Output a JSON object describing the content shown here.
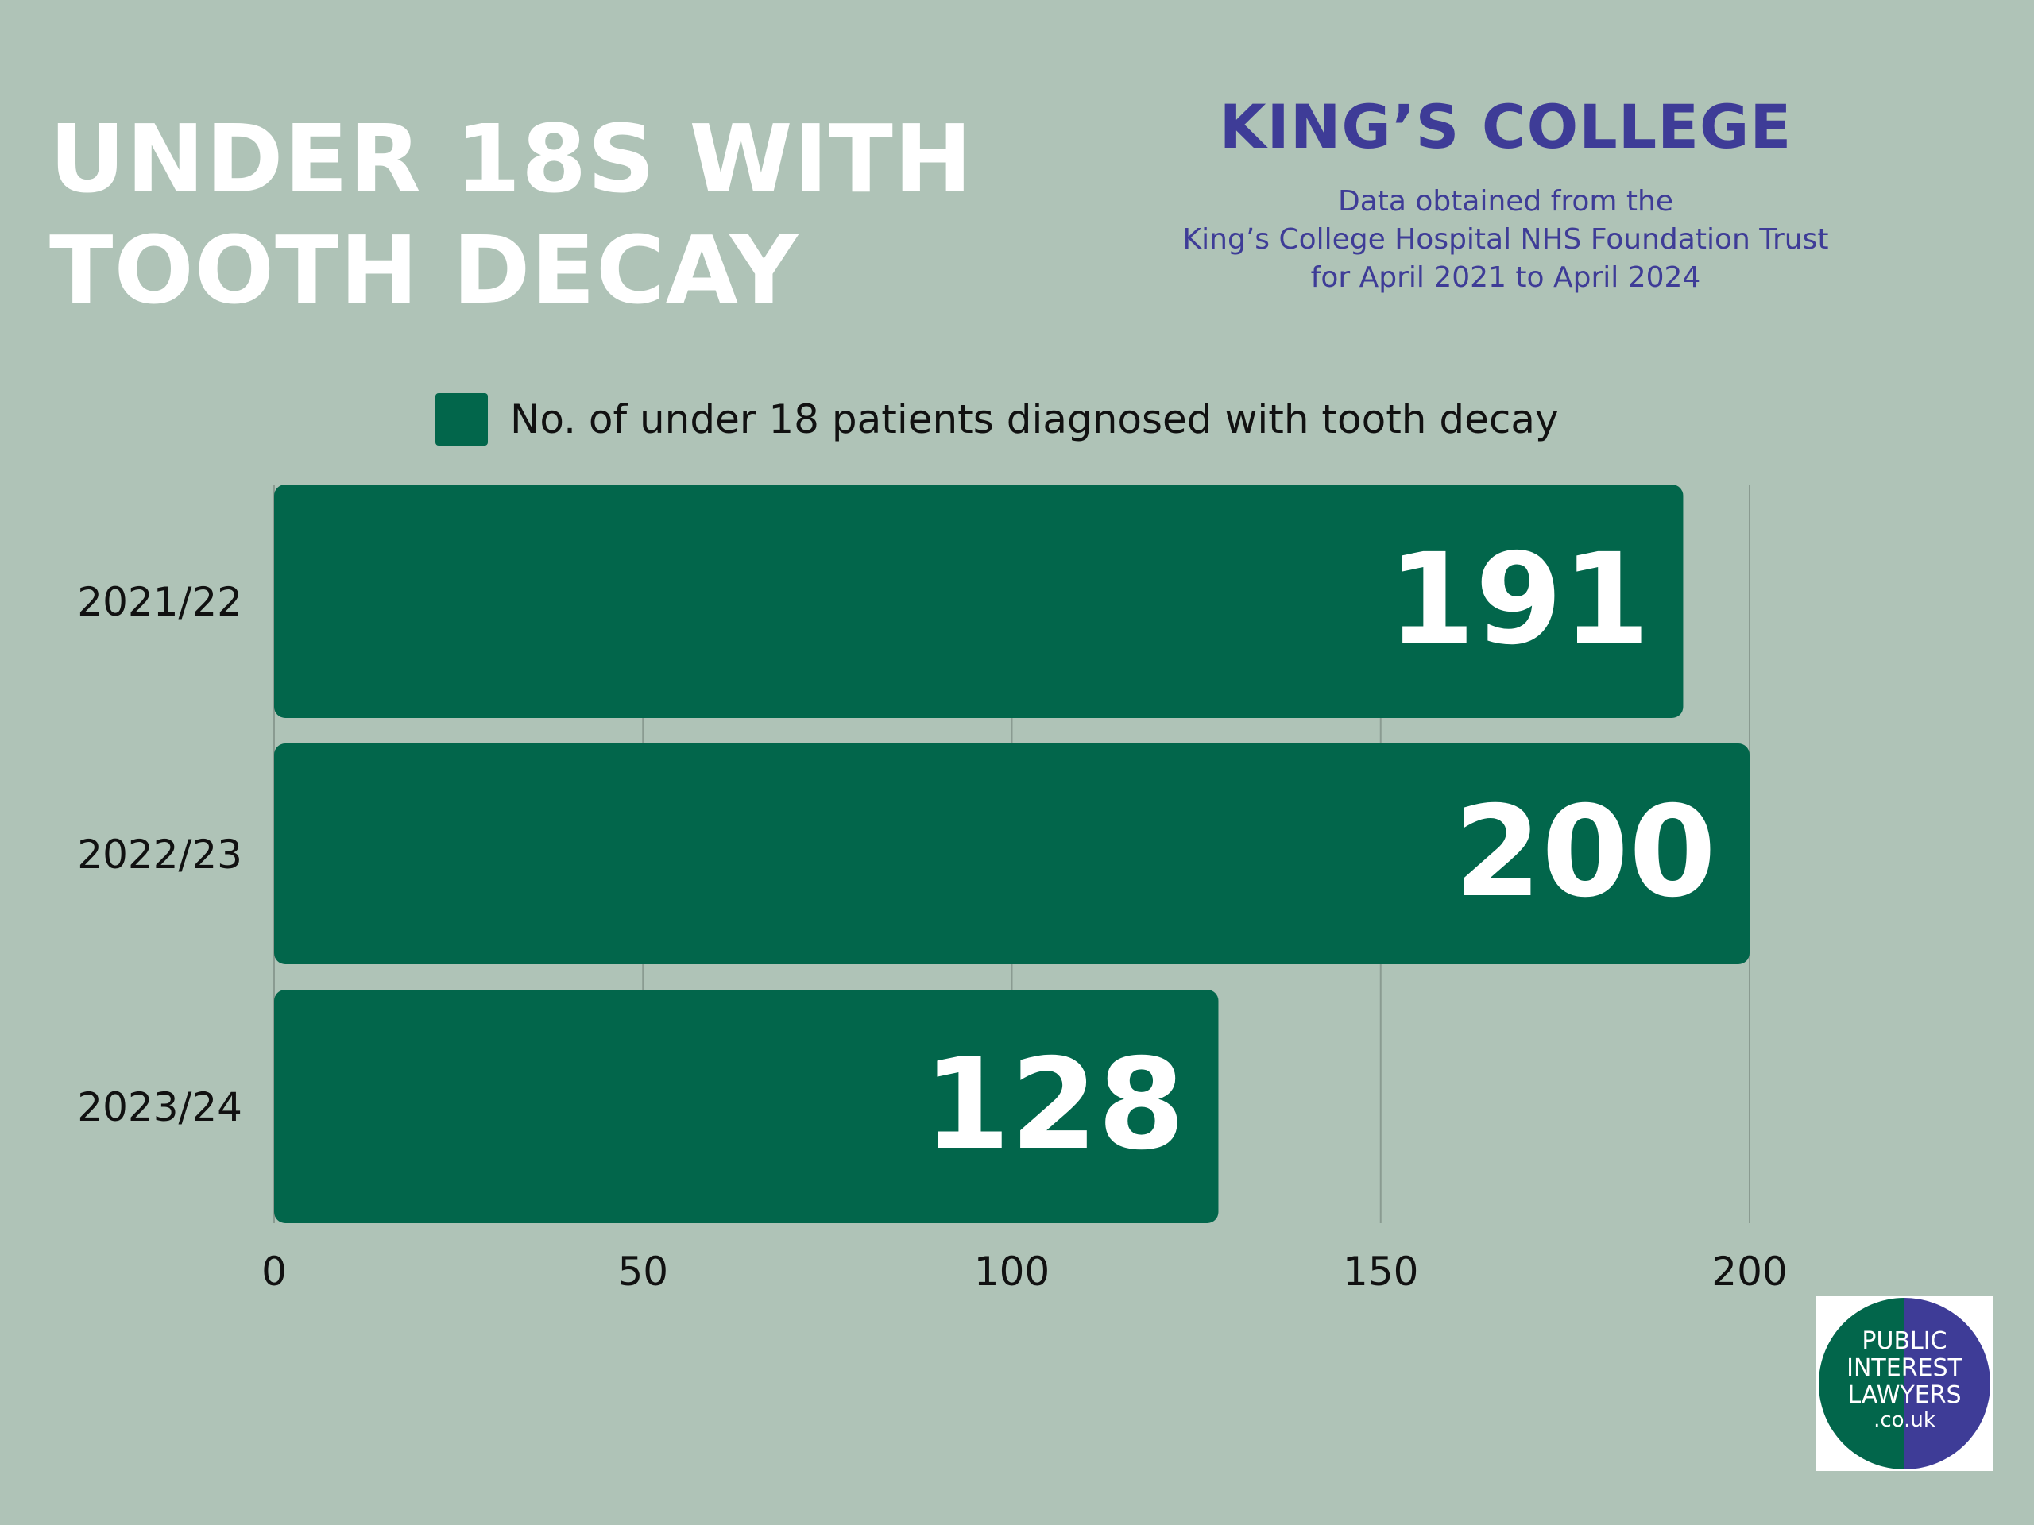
{
  "title_lines": [
    "UNDER 18S WITH",
    "TOOTH DECAY"
  ],
  "organization": {
    "name": "KING’S COLLEGE",
    "subtitle_lines": [
      "Data obtained from the",
      "King’s College Hospital NHS Foundation Trust",
      "for April 2021 to April 2024"
    ]
  },
  "colors": {
    "background": "#afc3b7",
    "bar": "#02664b",
    "accent": "#3e3c97",
    "title": "#ffffff"
  },
  "logo": {
    "icon": "public-interest-lawyers-logo",
    "lines": [
      "PUBLIC",
      "INTEREST",
      "LAWYERS",
      ".co.uk"
    ]
  },
  "chart_data": {
    "type": "bar",
    "orientation": "horizontal",
    "categories": [
      "2021/22",
      "2022/23",
      "2023/24"
    ],
    "series": [
      {
        "name": "No. of under 18 patients diagnosed with tooth decay",
        "values": [
          191,
          200,
          128
        ]
      }
    ],
    "xlim": [
      0,
      200
    ],
    "x_ticks": [
      0,
      50,
      100,
      150,
      200
    ],
    "grid": true,
    "legend": "top",
    "data_labels": true
  }
}
